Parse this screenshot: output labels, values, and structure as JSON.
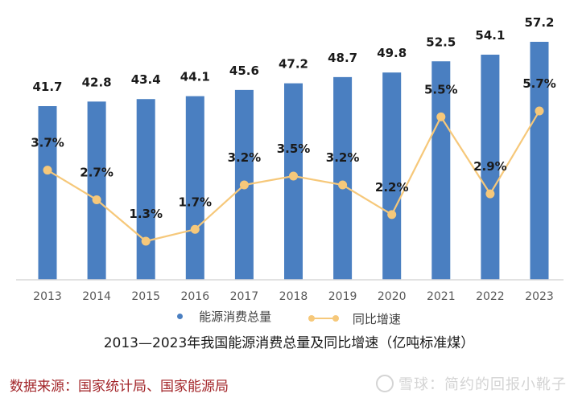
{
  "chart_data": {
    "type": "bar+line",
    "title": "2013—2023年我国能源消费总量及同比增速（亿吨标准煤）",
    "categories": [
      "2013",
      "2014",
      "2015",
      "2016",
      "2017",
      "2018",
      "2019",
      "2020",
      "2021",
      "2022",
      "2023"
    ],
    "series": [
      {
        "name": "能源消费总量",
        "type": "bar",
        "color": "#4a7fc1",
        "values": [
          41.7,
          42.8,
          43.4,
          44.1,
          45.6,
          47.2,
          48.7,
          49.8,
          52.5,
          54.1,
          57.2
        ],
        "labels": [
          "41.7",
          "42.8",
          "43.4",
          "44.1",
          "45.6",
          "47.2",
          "48.7",
          "49.8",
          "52.5",
          "54.1",
          "57.2"
        ]
      },
      {
        "name": "同比增速",
        "type": "line",
        "color": "#f6c87a",
        "values": [
          3.7,
          2.7,
          1.3,
          1.7,
          3.2,
          3.5,
          3.2,
          2.2,
          5.5,
          2.9,
          5.7
        ],
        "labels": [
          "3.7%",
          "2.7%",
          "1.3%",
          "1.7%",
          "3.2%",
          "3.5%",
          "3.2%",
          "2.2%",
          "5.5%",
          "2.9%",
          "5.7%"
        ]
      }
    ],
    "bar_axis_range": [
      0,
      60
    ],
    "line_axis_range": [
      -4,
      7.5
    ],
    "grid": false,
    "legend_position": "bottom",
    "xlabel": "",
    "ylabel": ""
  },
  "legend": {
    "bar_label": "能源消费总量",
    "line_label": "同比增速"
  },
  "footer": {
    "source": "数据来源：国家统计局、国家能源局",
    "watermark": "雪球：简约的回报小靴子"
  },
  "colors": {
    "bar": "#4a7fc1",
    "line": "#f6c87a",
    "axis": "#d9d9d9",
    "source_text": "#a3262a"
  }
}
